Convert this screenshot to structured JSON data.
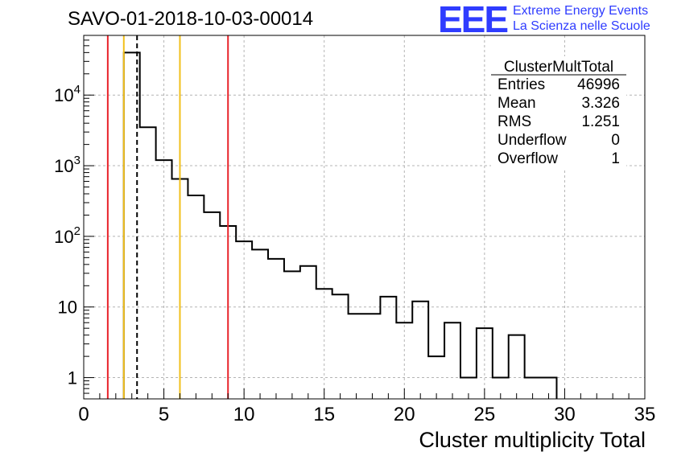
{
  "header": {
    "title": "SAVO-01-2018-10-03-00014",
    "logo_text": "EEE",
    "logo_line1": "Extreme Energy Events",
    "logo_line2": "La Scienza nelle Scuole"
  },
  "stats": {
    "name": "ClusterMultTotal",
    "rows": [
      {
        "label": "Entries",
        "value": "46996"
      },
      {
        "label": "Mean",
        "value": "3.326"
      },
      {
        "label": "RMS",
        "value": "1.251"
      },
      {
        "label": "Underflow",
        "value": "0"
      },
      {
        "label": "Overflow",
        "value": "1"
      }
    ]
  },
  "chart_data": {
    "type": "bar",
    "histogram": true,
    "xlabel": "Cluster multiplicity Total",
    "ylabel": "",
    "xlim": [
      0,
      35
    ],
    "ylim": [
      0.5,
      70000
    ],
    "y_scale": "log",
    "grid": true,
    "x_ticks": [
      0,
      5,
      10,
      15,
      20,
      25,
      30,
      35
    ],
    "y_tick_labels": [
      "1",
      "10",
      "10^2",
      "10^3",
      "10^4"
    ],
    "bin_width": 1,
    "bin_low_edges": [
      2.5,
      3.5,
      4.5,
      5.5,
      6.5,
      7.5,
      8.5,
      9.5,
      10.5,
      11.5,
      12.5,
      13.5,
      14.5,
      15.5,
      16.5,
      17.5,
      18.5,
      19.5,
      20.5,
      21.5,
      22.5,
      23.5,
      24.5,
      25.5,
      26.5,
      27.5,
      28.5
    ],
    "counts": [
      40000,
      3500,
      1200,
      650,
      380,
      220,
      140,
      85,
      65,
      48,
      32,
      38,
      18,
      15,
      8,
      8,
      14,
      6,
      12,
      2,
      6,
      1,
      5,
      1,
      4,
      1,
      1
    ],
    "vertical_lines": [
      {
        "x": 1.5,
        "color": "#e8232a",
        "style": "solid"
      },
      {
        "x": 2.5,
        "color": "#f2c01b",
        "style": "solid"
      },
      {
        "x": 3.326,
        "color": "#000000",
        "style": "dashed"
      },
      {
        "x": 6.0,
        "color": "#f2c01b",
        "style": "solid"
      },
      {
        "x": 9.0,
        "color": "#e8232a",
        "style": "solid"
      }
    ]
  }
}
